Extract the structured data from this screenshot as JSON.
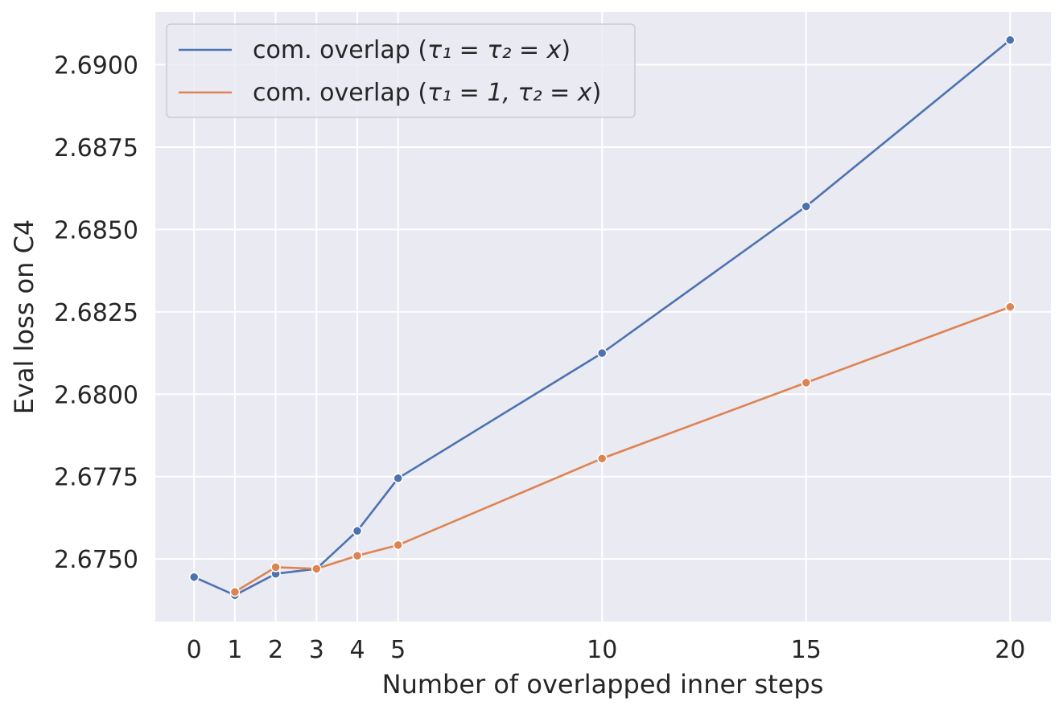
{
  "chart_data": {
    "type": "line",
    "xlabel": "Number of overlapped inner steps",
    "ylabel": "Eval loss on C4",
    "x": [
      0,
      1,
      2,
      3,
      4,
      5,
      10,
      15,
      20
    ],
    "xticks": [
      0,
      1,
      2,
      3,
      4,
      5,
      10,
      15,
      20
    ],
    "xlim": [
      -0.95,
      21
    ],
    "yticks": [
      2.675,
      2.6775,
      2.68,
      2.6825,
      2.685,
      2.6875,
      2.69
    ],
    "ytick_labels": [
      "2.6750",
      "2.6775",
      "2.6800",
      "2.6825",
      "2.6850",
      "2.6875",
      "2.6900"
    ],
    "ylim": [
      2.6731,
      2.6916
    ],
    "grid": true,
    "legend_position": "top-left",
    "series": [
      {
        "name": "com. overlap (τ₁ = τ₂ = x)",
        "name_parts": {
          "prefix": "com. overlap (",
          "formula": "τ₁ = τ₂ = x",
          "suffix": ")"
        },
        "color": "#4c72b0",
        "values": [
          2.67445,
          2.6739,
          2.67455,
          2.6747,
          2.67585,
          2.67745,
          2.68125,
          2.6857,
          2.69075
        ]
      },
      {
        "name": "com. overlap (τ₁ = 1, τ₂ = x)",
        "name_parts": {
          "prefix": "com. overlap (",
          "formula": "τ₁ = 1, τ₂ = x",
          "suffix": ")"
        },
        "color": "#dd8452",
        "values": [
          null,
          2.674,
          2.67475,
          2.6747,
          2.6751,
          2.67542,
          2.67805,
          2.68035,
          2.68265
        ]
      }
    ]
  }
}
